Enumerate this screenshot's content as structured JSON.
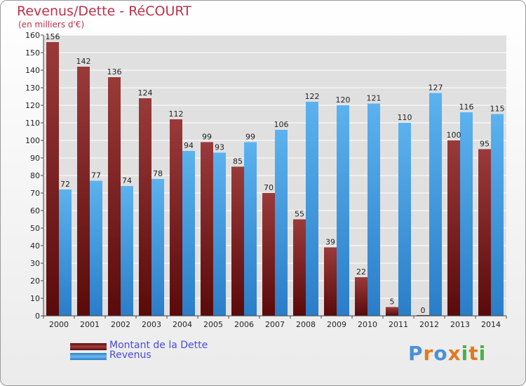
{
  "header": {
    "title": "Revenus/Dette - RéCOURT",
    "subtitle": "(en milliers d'€)"
  },
  "legend": [
    {
      "label": "Montant de la Dette",
      "color": "#7a1a1a"
    },
    {
      "label": "Revenus",
      "color": "#4aa3e6"
    }
  ],
  "logo": {
    "text": "Proxiti",
    "letters": [
      "P",
      "r",
      "o",
      "x",
      "i",
      "t",
      "i"
    ],
    "colors": [
      "#4a90d9",
      "#e07a20",
      "#4a90d9",
      "#e07a20",
      "#4ab04a",
      "#e07a20",
      "#4ab04a"
    ]
  },
  "chart_data": {
    "type": "bar",
    "title": "Revenus/Dette - RéCOURT",
    "ylabel": "(en milliers d'€)",
    "categories": [
      "2000",
      "2001",
      "2002",
      "2003",
      "2004",
      "2005",
      "2006",
      "2007",
      "2008",
      "2009",
      "2010",
      "2011",
      "2012",
      "2013",
      "2014"
    ],
    "series": [
      {
        "name": "Montant de la Dette",
        "values": [
          156,
          142,
          136,
          124,
          112,
          99,
          85,
          70,
          55,
          39,
          22,
          5,
          0,
          100,
          95
        ],
        "color": "#7a1a1a"
      },
      {
        "name": "Revenus",
        "values": [
          72,
          77,
          74,
          78,
          94,
          93,
          99,
          106,
          122,
          120,
          121,
          110,
          127,
          116,
          115
        ],
        "color": "#4aa3e6"
      }
    ],
    "ylim": [
      0,
      160
    ],
    "yticks": [
      0,
      10,
      20,
      30,
      40,
      50,
      60,
      70,
      80,
      90,
      100,
      110,
      120,
      130,
      140,
      150,
      160
    ],
    "grid": true,
    "legend": "bottom-left"
  }
}
